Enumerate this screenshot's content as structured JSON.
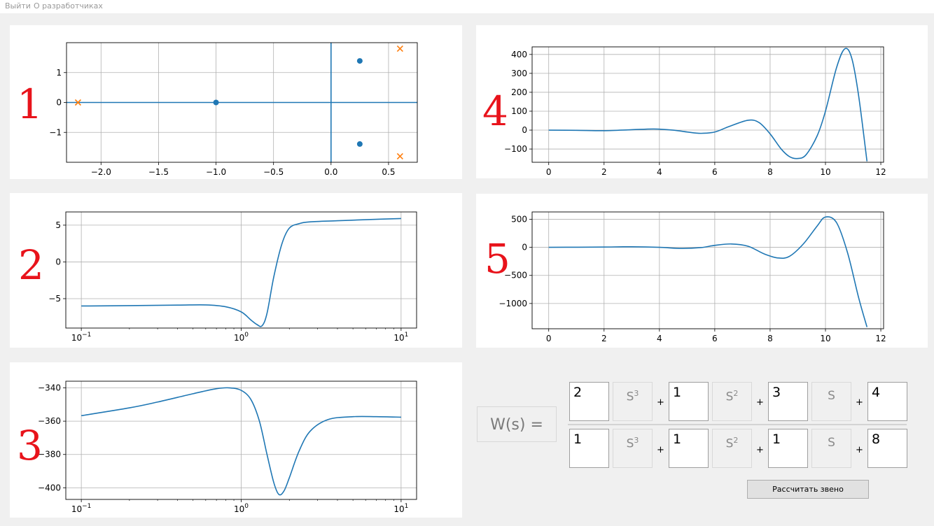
{
  "menu": {
    "exit": "Выйти",
    "about": "О разработчиках"
  },
  "panels": [
    {
      "num": "1"
    },
    {
      "num": "2"
    },
    {
      "num": "3"
    },
    {
      "num": "4"
    },
    {
      "num": "5"
    }
  ],
  "transfer": {
    "label": "W(s) =",
    "s_labels": [
      "S",
      "S",
      "S"
    ],
    "s_powers": [
      "3",
      "2",
      ""
    ],
    "plus": "+",
    "numerator": [
      "2",
      "1",
      "3",
      "4"
    ],
    "denominator": [
      "1",
      "1",
      "1",
      "8"
    ]
  },
  "calculate_button": "Рассчитать звено",
  "chart_data": [
    {
      "id": "pole-zero",
      "type": "scatter",
      "xlim": [
        -2.3,
        0.75
      ],
      "ylim": [
        -2.0,
        2.0
      ],
      "grid": true,
      "xticks": [
        "−2.0",
        "−1.5",
        "−1.0",
        "−0.5",
        "0.0",
        "0.5"
      ],
      "yticks": [
        "1",
        "0",
        "−1"
      ],
      "series": [
        {
          "marker": "o",
          "color": "#1f77b4",
          "points": [
            [
              -1.0,
              0
            ],
            [
              0.25,
              1.39
            ],
            [
              0.25,
              -1.39
            ]
          ]
        },
        {
          "marker": "x",
          "color": "#ff7f0e",
          "points": [
            [
              -2.2,
              0
            ],
            [
              0.6,
              1.8
            ],
            [
              0.6,
              -1.8
            ]
          ]
        }
      ]
    },
    {
      "id": "amplitude",
      "type": "line",
      "xscale": "log",
      "xlim": [
        0.08,
        12.5
      ],
      "ylim": [
        -9,
        6.8
      ],
      "grid": true,
      "xticks": [
        "10^-1",
        "10^0",
        "10^1"
      ],
      "yticks": [
        "5",
        "0",
        "−5"
      ],
      "x": [
        0.1,
        0.2,
        0.4,
        0.6,
        0.8,
        1.0,
        1.15,
        1.25,
        1.35,
        1.45,
        1.6,
        1.8,
        2.0,
        2.3,
        2.7,
        4,
        6,
        10
      ],
      "values": [
        -6.0,
        -5.95,
        -5.88,
        -5.85,
        -6.1,
        -6.8,
        -7.9,
        -8.5,
        -8.7,
        -7.0,
        -2.0,
        2.5,
        4.6,
        5.2,
        5.45,
        5.6,
        5.75,
        5.9
      ]
    },
    {
      "id": "phase",
      "type": "line",
      "xscale": "log",
      "xlim": [
        0.08,
        12.5
      ],
      "ylim": [
        -407,
        -336
      ],
      "grid": true,
      "xticks": [
        "10^-1",
        "10^0",
        "10^1"
      ],
      "yticks": [
        "−340",
        "−360",
        "−380",
        "−400"
      ],
      "x": [
        0.1,
        0.2,
        0.3,
        0.5,
        0.7,
        0.85,
        1.0,
        1.15,
        1.3,
        1.45,
        1.6,
        1.72,
        1.85,
        2.0,
        2.3,
        2.7,
        3.5,
        5,
        7,
        10
      ],
      "values": [
        -356.7,
        -352,
        -348.5,
        -343.5,
        -340.5,
        -340,
        -341.5,
        -347,
        -360,
        -380,
        -397,
        -404,
        -402,
        -394,
        -378,
        -366,
        -359,
        -357.3,
        -357.3,
        -357.6
      ]
    },
    {
      "id": "transient",
      "type": "line",
      "xlim": [
        -0.6,
        12.1
      ],
      "ylim": [
        -170,
        440
      ],
      "grid": true,
      "xticks": [
        "0",
        "2",
        "4",
        "6",
        "8",
        "10",
        "12"
      ],
      "yticks": [
        "400",
        "300",
        "200",
        "100",
        "0",
        "−100"
      ],
      "x": [
        0,
        1,
        2,
        3,
        3.8,
        4.5,
        5,
        5.5,
        6,
        6.5,
        7.2,
        7.6,
        8,
        8.4,
        8.7,
        9.0,
        9.3,
        9.7,
        10,
        10.4,
        10.7,
        10.95,
        11.2,
        11.5
      ],
      "values": [
        0,
        -1,
        -3,
        2,
        6,
        0,
        -10,
        -17,
        -10,
        18,
        52,
        40,
        -20,
        -100,
        -140,
        -150,
        -130,
        -30,
        100,
        330,
        430,
        380,
        180,
        -165
      ]
    },
    {
      "id": "impulse",
      "type": "line",
      "xlim": [
        -0.6,
        12.1
      ],
      "ylim": [
        -1450,
        630
      ],
      "grid": true,
      "xticks": [
        "0",
        "2",
        "4",
        "6",
        "8",
        "10",
        "12"
      ],
      "yticks": [
        "500",
        "0",
        "−500",
        "−1000"
      ],
      "x": [
        0,
        1,
        2,
        3,
        4,
        4.8,
        5.5,
        6,
        6.6,
        7.2,
        7.8,
        8.3,
        8.7,
        9.2,
        9.7,
        10.0,
        10.4,
        10.8,
        11.2,
        11.5
      ],
      "values": [
        0,
        2,
        5,
        10,
        0,
        -20,
        -5,
        35,
        60,
        20,
        -120,
        -190,
        -160,
        60,
        380,
        540,
        440,
        -100,
        -900,
        -1420
      ]
    }
  ]
}
